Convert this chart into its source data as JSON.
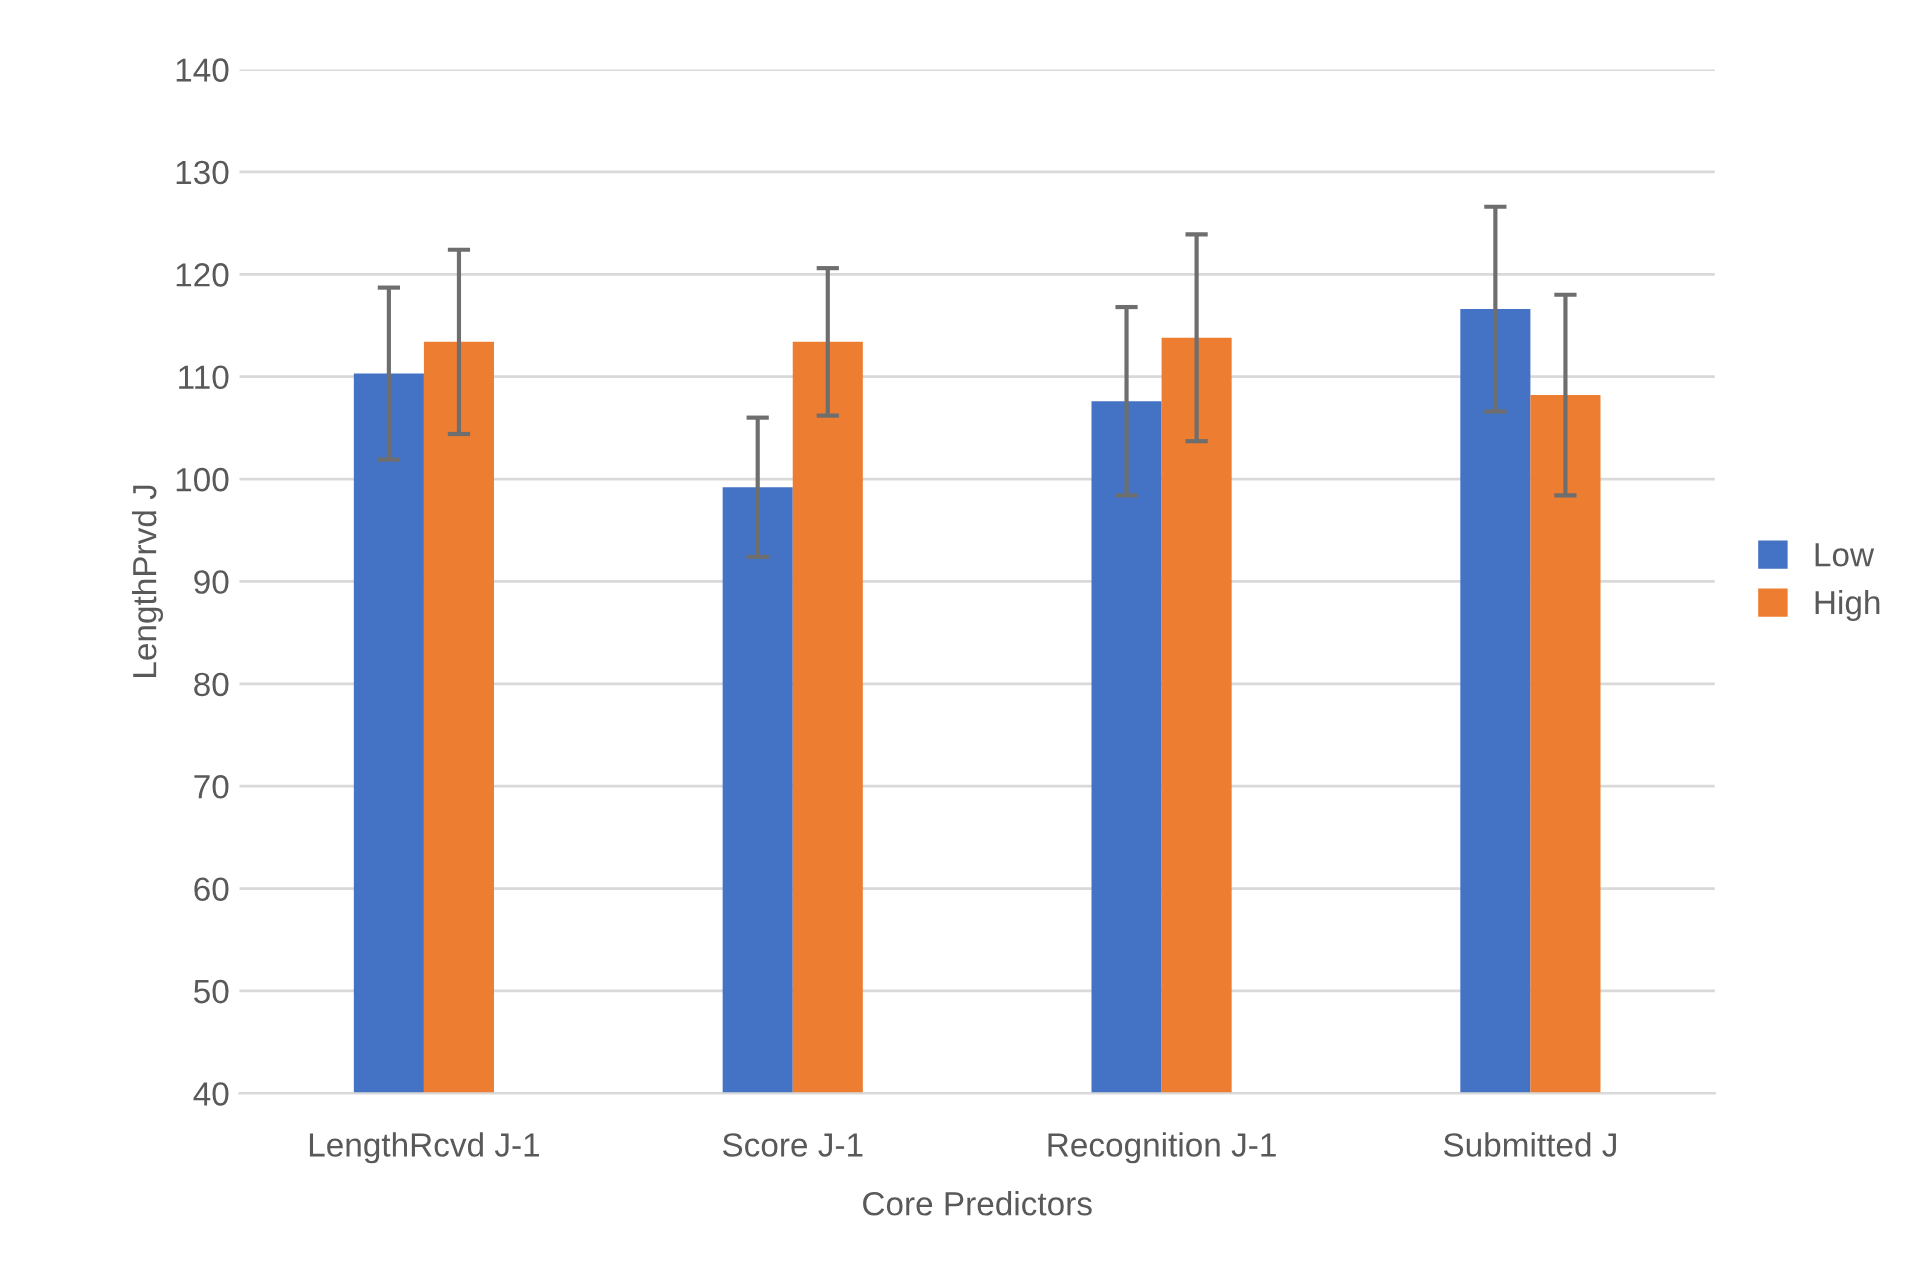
{
  "chart_data": {
    "type": "bar",
    "xlabel": "Core Predictors",
    "ylabel": "LengthPrvd J",
    "categories": [
      "LengthRcvd J-1",
      "Score J-1",
      "Recognition J-1",
      "Submitted J"
    ],
    "series": [
      {
        "name": "Low",
        "color": "#4472c4",
        "values": [
          110.3,
          99.2,
          107.6,
          116.6
        ],
        "errors": [
          8.4,
          6.8,
          9.2,
          10.0
        ]
      },
      {
        "name": "High",
        "color": "#ed7d31",
        "values": [
          113.4,
          113.4,
          113.8,
          108.2
        ],
        "errors": [
          9.0,
          7.2,
          10.1,
          9.8
        ]
      }
    ],
    "ylim": [
      40,
      140
    ],
    "yticks": [
      40,
      50,
      60,
      70,
      80,
      90,
      100,
      110,
      120,
      130,
      140
    ],
    "grid": "y",
    "legend": "right"
  }
}
